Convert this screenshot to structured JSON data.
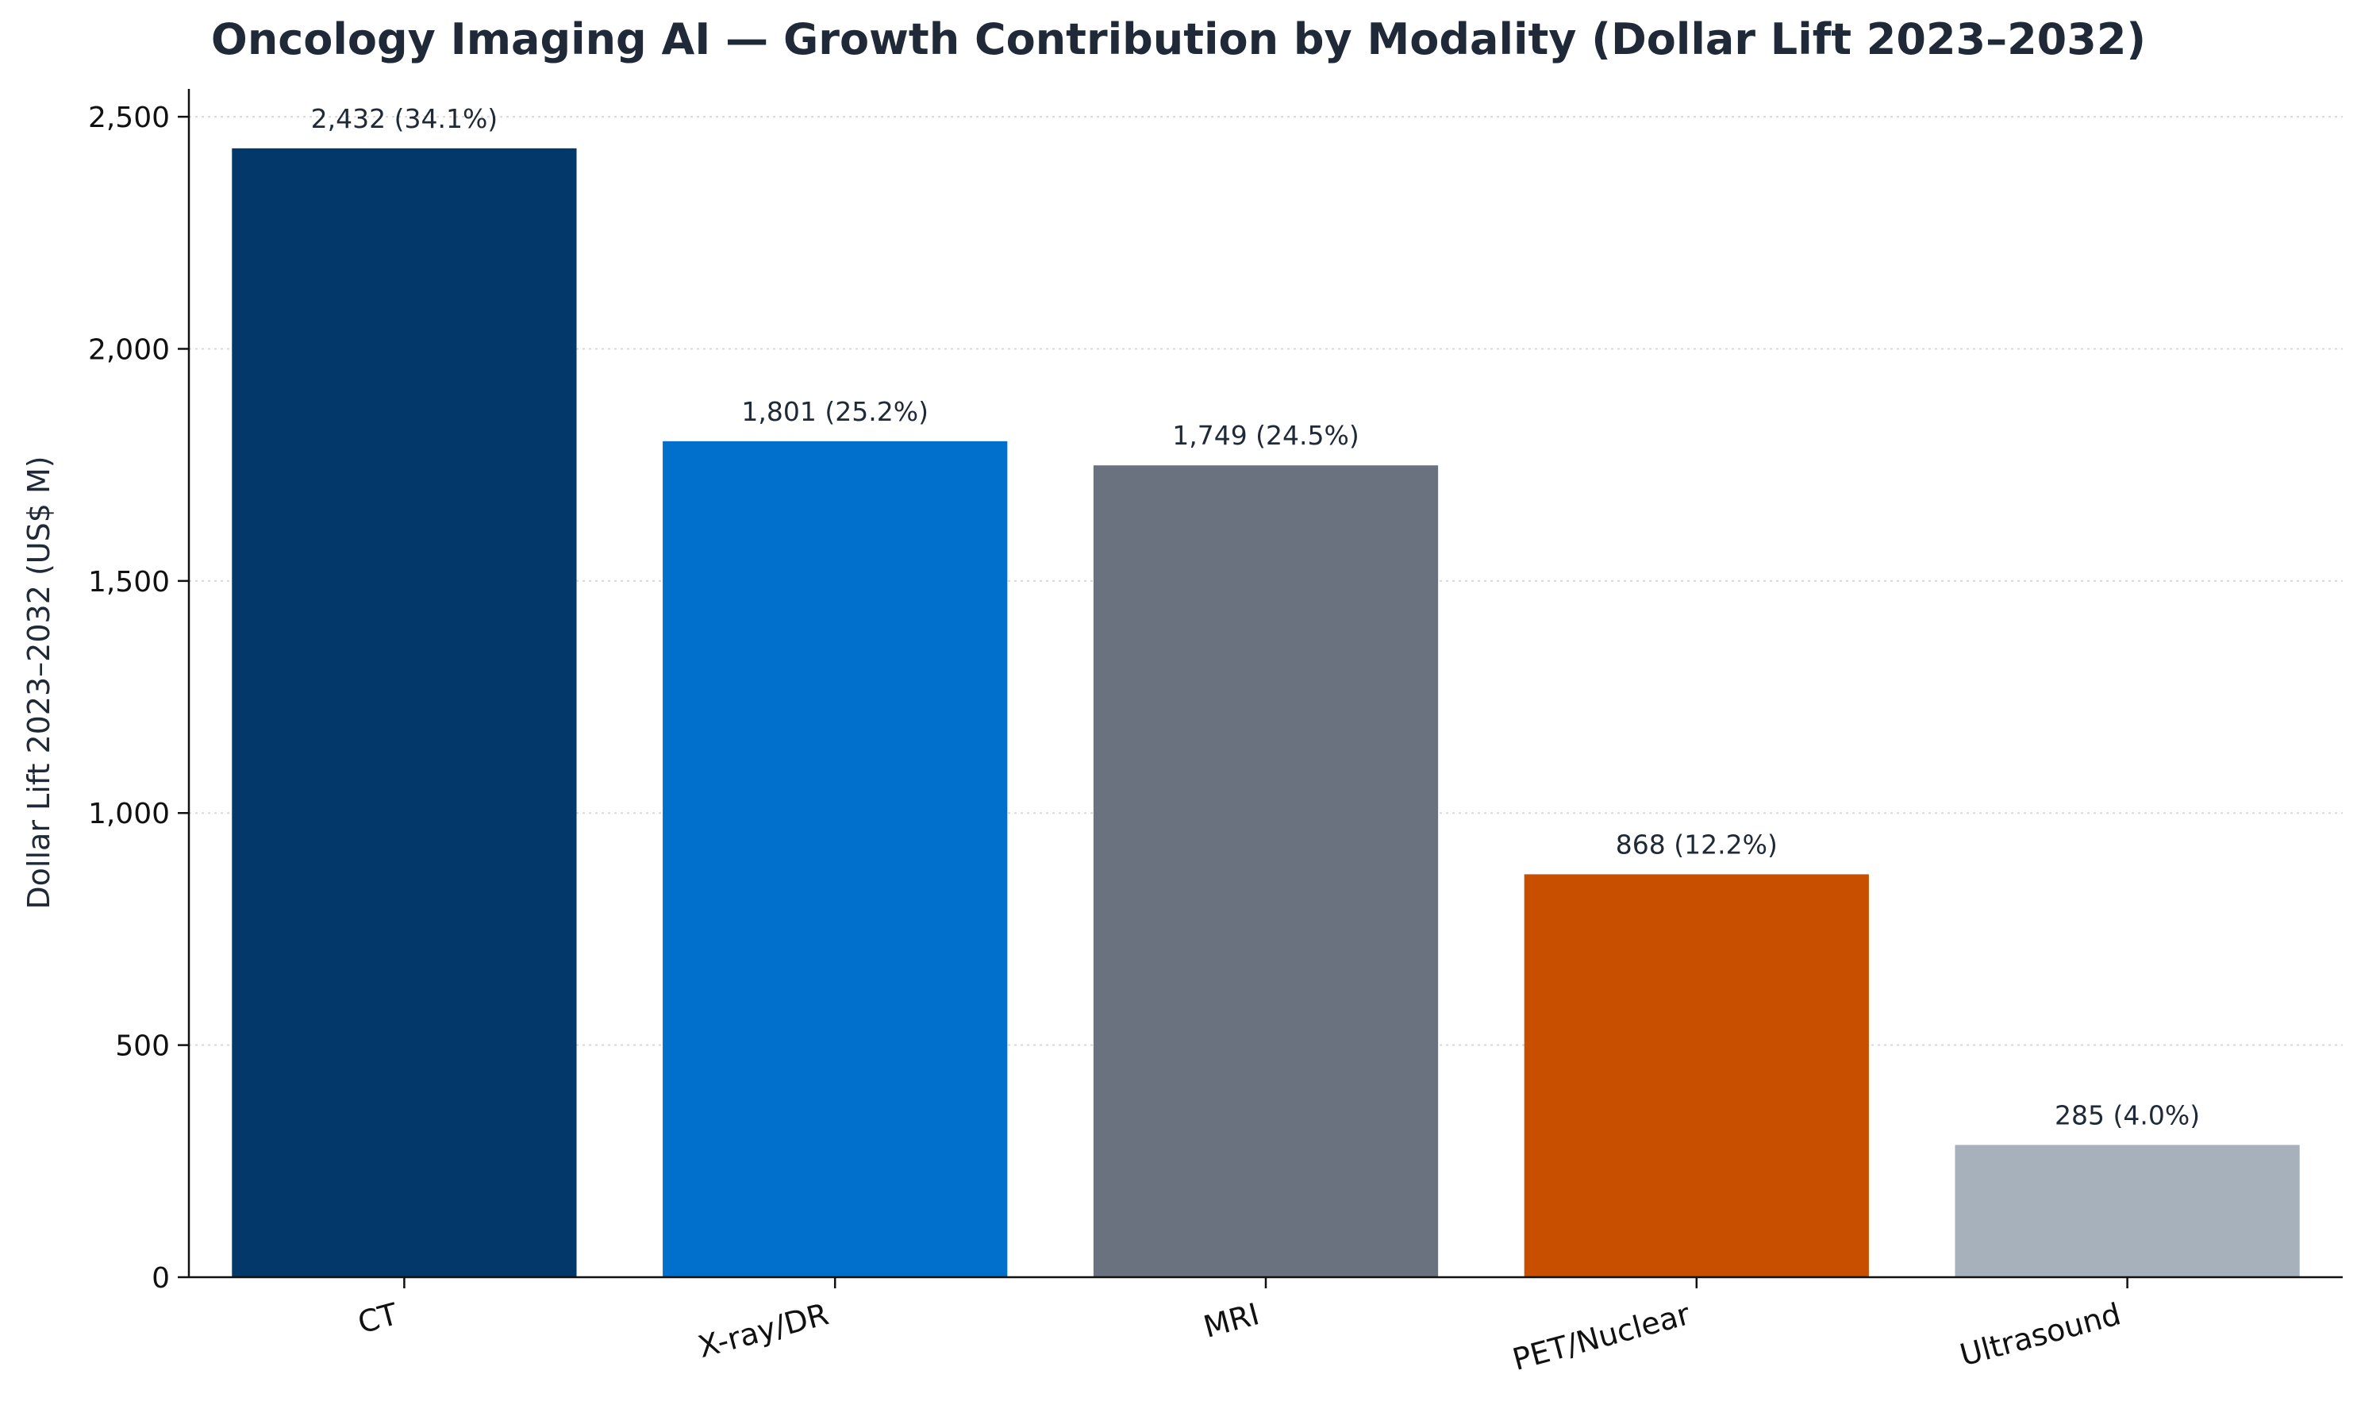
{
  "chart_data": {
    "type": "bar",
    "title": "Oncology Imaging AI — Growth Contribution by Modality (Dollar Lift 2023–2032)",
    "xlabel": "",
    "ylabel": "Dollar Lift 2023–2032 (US$ M)",
    "categories": [
      "CT",
      "X-ray/DR",
      "MRI",
      "PET/Nuclear",
      "Ultrasound"
    ],
    "values": [
      2432,
      1801,
      1749,
      868,
      285
    ],
    "data_labels": [
      "2,432  (34.1%)",
      "1,801  (25.2%)",
      "1,749  (24.5%)",
      "868  (12.2%)",
      "285  (4.0%)"
    ],
    "colors": [
      "#03386b",
      "#0070cc",
      "#6b727f",
      "#c94f00",
      "#a7b1bb"
    ],
    "ylim": [
      0,
      2560
    ],
    "yticks": [
      0,
      500,
      1000,
      1500,
      2000,
      2500
    ],
    "ytick_labels": [
      "0",
      "500",
      "1,000",
      "1,500",
      "2,000",
      "2,500"
    ],
    "grid": true,
    "legend": "none"
  }
}
